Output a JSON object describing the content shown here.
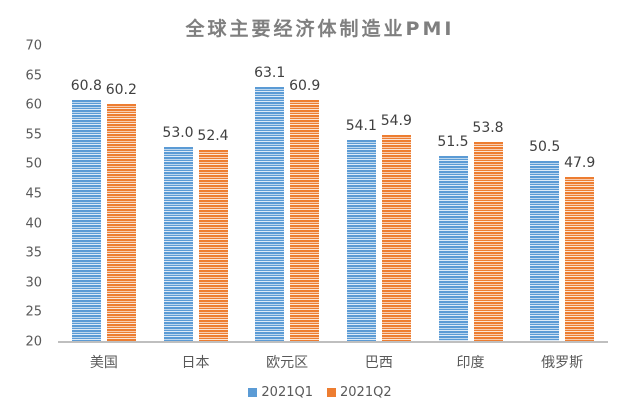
{
  "chart_data": {
    "type": "bar",
    "title": "全球主要经济体制造业PMI",
    "xlabel": "",
    "ylabel": "",
    "ylim": [
      20,
      70
    ],
    "yticks": [
      20,
      25,
      30,
      35,
      40,
      45,
      50,
      55,
      60,
      65,
      70
    ],
    "grid": false,
    "legend_position": "bottom",
    "categories": [
      "美国",
      "日本",
      "欧元区",
      "巴西",
      "印度",
      "俄罗斯"
    ],
    "series": [
      {
        "name": "2021Q1",
        "color": "#5b9bd5",
        "values": [
          60.8,
          53.0,
          63.1,
          54.1,
          51.5,
          50.5
        ],
        "labels": [
          "60.8",
          "53.0",
          "63.1",
          "54.1",
          "51.5",
          "50.5"
        ]
      },
      {
        "name": "2021Q2",
        "color": "#ed7d31",
        "values": [
          60.2,
          52.4,
          60.9,
          54.9,
          53.8,
          47.9
        ],
        "labels": [
          "60.2",
          "52.4",
          "60.9",
          "54.9",
          "53.8",
          "47.9"
        ]
      }
    ]
  },
  "yaxis": {
    "ticks": [
      "70",
      "65",
      "60",
      "55",
      "50",
      "45",
      "40",
      "35",
      "30",
      "25",
      "20"
    ]
  },
  "legend": {
    "q1": "2021Q1",
    "q2": "2021Q2"
  }
}
